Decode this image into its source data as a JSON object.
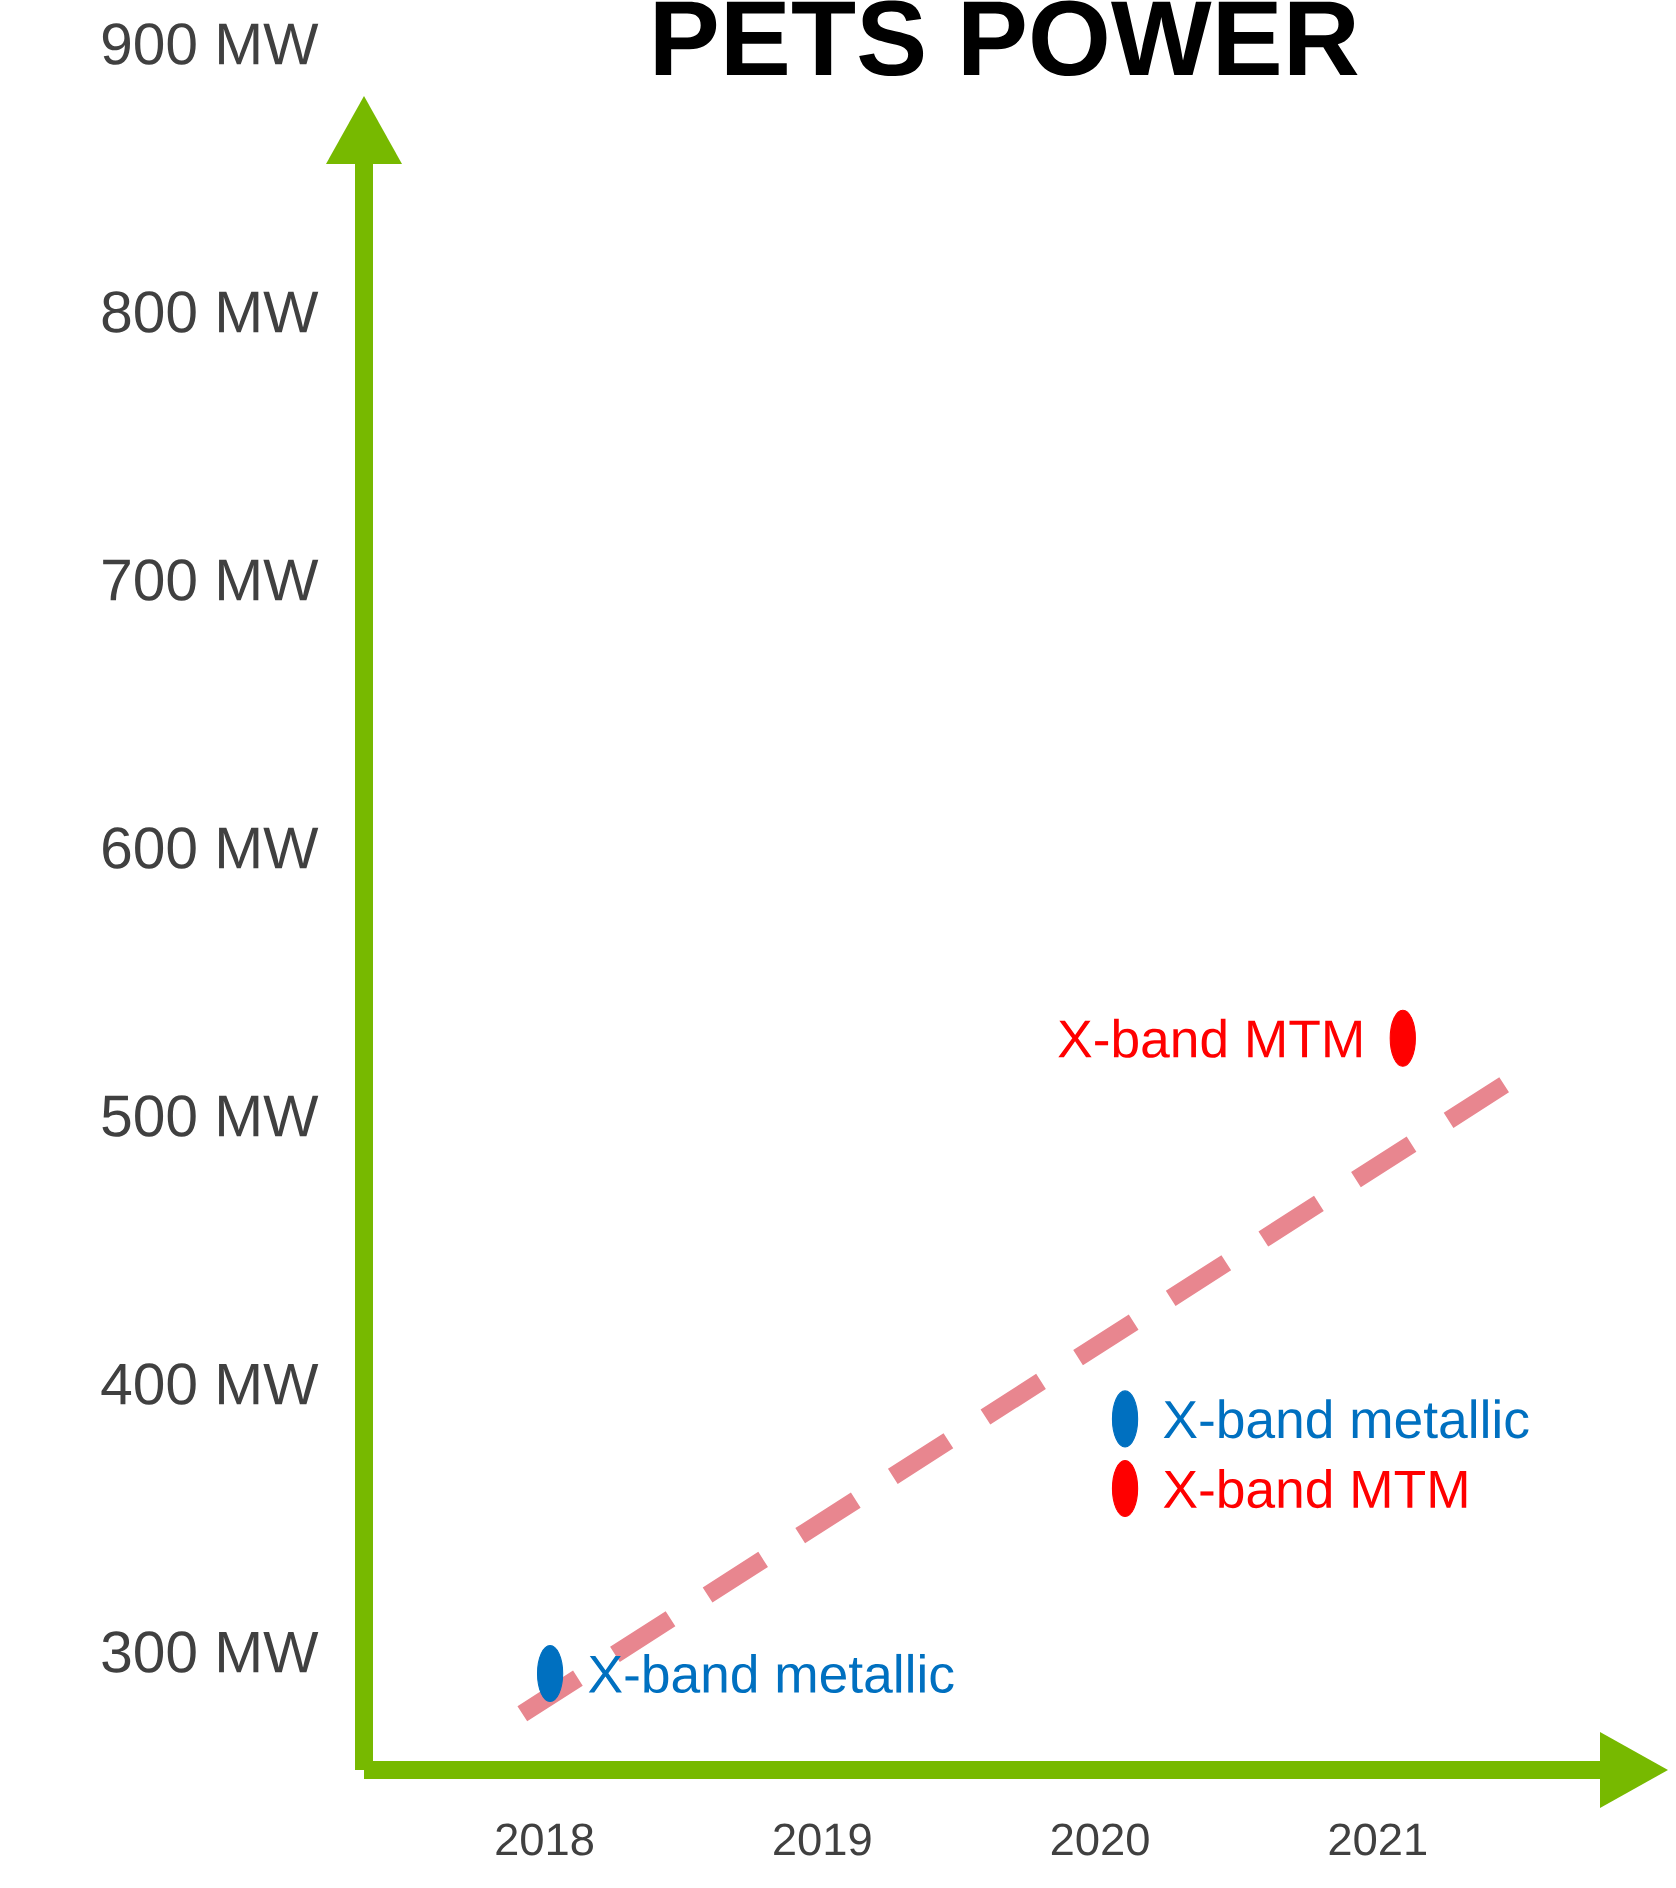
{
  "chart_data": {
    "type": "scatter",
    "title": "PETS POWER",
    "xlim": [
      2017.35,
      2021.8
    ],
    "xticks": [
      2018,
      2019,
      2020,
      2021
    ],
    "ylim": [
      256,
      900
    ],
    "yticks": [
      {
        "value": 300,
        "label": "300 MW"
      },
      {
        "value": 400,
        "label": "400 MW"
      },
      {
        "value": 500,
        "label": "500 MW"
      },
      {
        "value": 600,
        "label": "600 MW"
      },
      {
        "value": 700,
        "label": "700 MW"
      },
      {
        "value": 800,
        "label": "800 MW"
      },
      {
        "value": 900,
        "label": "900 MW"
      }
    ],
    "marker": "circle",
    "annotations": [
      {
        "text": "X-band metallic",
        "x": 2018.02,
        "y": 292
      },
      {
        "text": "X-band metallic",
        "x": 2020.09,
        "y": 387
      },
      {
        "text": "X-band MTM",
        "x": 2020.09,
        "y": 361
      },
      {
        "text": "X-band MTM",
        "x": 2021.09,
        "y": 529
      }
    ],
    "series": [
      {
        "color": "#0070c0",
        "x": [
          2018.02,
          2020.09
        ],
        "values": [
          292,
          387
        ]
      },
      {
        "color": "#ff0000",
        "x": [
          2020.09,
          2021.09
        ],
        "values": [
          361,
          529
        ]
      },
      {
        "type": "line",
        "line_style": "dashed",
        "marker": "none",
        "color": "#e8868f",
        "x": [
          2017.92,
          2021.52
        ],
        "values": [
          277,
          516
        ]
      }
    ]
  }
}
